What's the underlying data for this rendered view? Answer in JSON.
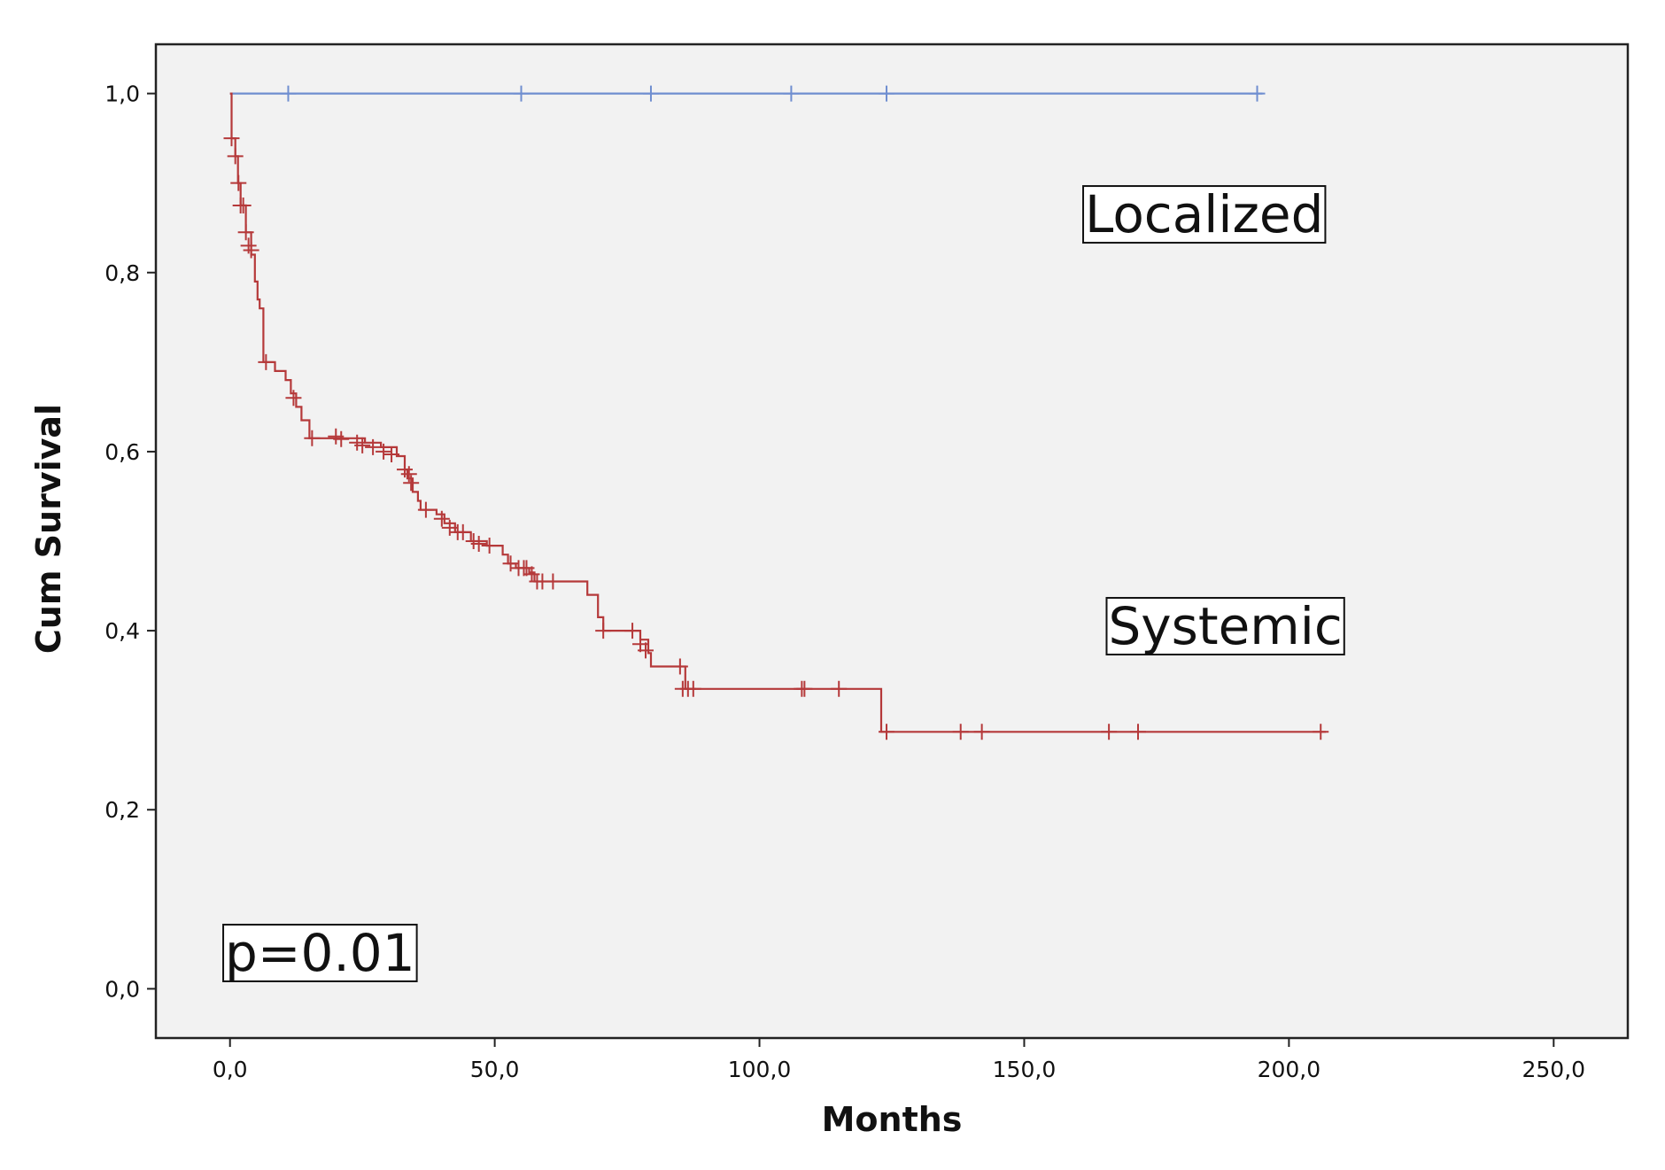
{
  "chart_data": {
    "type": "line",
    "subtype": "kaplan-meier",
    "title": "",
    "xlabel": "Months",
    "ylabel": "Cum Survival",
    "xlim": [
      -14,
      264
    ],
    "ylim": [
      -0.055,
      1.055
    ],
    "x_ticks": [
      {
        "value": 0,
        "label": "0,0"
      },
      {
        "value": 50,
        "label": "50,0"
      },
      {
        "value": 100,
        "label": "100,0"
      },
      {
        "value": 150,
        "label": "150,0"
      },
      {
        "value": 200,
        "label": "200,0"
      },
      {
        "value": 250,
        "label": "250,0"
      }
    ],
    "y_ticks": [
      {
        "value": 0.0,
        "label": "0,0"
      },
      {
        "value": 0.2,
        "label": "0,2"
      },
      {
        "value": 0.4,
        "label": "0,4"
      },
      {
        "value": 0.6,
        "label": "0,6"
      },
      {
        "value": 0.8,
        "label": "0,8"
      },
      {
        "value": 1.0,
        "label": "1,0"
      }
    ],
    "grid": false,
    "legend": "none",
    "series": [
      {
        "name": "Localized",
        "color": "#6f8ed0",
        "steps": [
          [
            0,
            1.0
          ],
          [
            195,
            1.0
          ]
        ],
        "censored": [
          [
            11,
            1.0
          ],
          [
            55,
            1.0
          ],
          [
            79.5,
            1.0
          ],
          [
            106,
            1.0
          ],
          [
            124,
            1.0
          ],
          [
            194,
            1.0
          ]
        ]
      },
      {
        "name": "Systemic",
        "color": "#b5393a",
        "steps": [
          [
            0,
            1.0
          ],
          [
            0.3,
            0.95
          ],
          [
            1.0,
            0.93
          ],
          [
            1.5,
            0.9
          ],
          [
            2.0,
            0.875
          ],
          [
            3.0,
            0.845
          ],
          [
            4.0,
            0.82
          ],
          [
            4.7,
            0.79
          ],
          [
            5.2,
            0.77
          ],
          [
            5.6,
            0.76
          ],
          [
            6.3,
            0.7
          ],
          [
            8.5,
            0.69
          ],
          [
            10.5,
            0.68
          ],
          [
            11.5,
            0.665
          ],
          [
            12.5,
            0.65
          ],
          [
            13.5,
            0.635
          ],
          [
            15.0,
            0.615
          ],
          [
            25.5,
            0.61
          ],
          [
            28.5,
            0.605
          ],
          [
            31.5,
            0.595
          ],
          [
            33.0,
            0.58
          ],
          [
            33.5,
            0.57
          ],
          [
            34.5,
            0.555
          ],
          [
            35.5,
            0.545
          ],
          [
            36.0,
            0.535
          ],
          [
            39.0,
            0.53
          ],
          [
            40.5,
            0.52
          ],
          [
            42.5,
            0.51
          ],
          [
            45.5,
            0.5
          ],
          [
            48.5,
            0.495
          ],
          [
            51.5,
            0.485
          ],
          [
            52.5,
            0.475
          ],
          [
            54.0,
            0.47
          ],
          [
            56.5,
            0.465
          ],
          [
            57.5,
            0.455
          ],
          [
            67.5,
            0.44
          ],
          [
            69.5,
            0.415
          ],
          [
            70.5,
            0.4
          ],
          [
            77.5,
            0.39
          ],
          [
            79.0,
            0.375
          ],
          [
            79.5,
            0.36
          ],
          [
            86.0,
            0.335
          ],
          [
            123.0,
            0.287
          ],
          [
            207,
            0.287
          ]
        ],
        "censored": [
          [
            0.3,
            0.95
          ],
          [
            1.0,
            0.93
          ],
          [
            1.6,
            0.9
          ],
          [
            2.0,
            0.875
          ],
          [
            2.5,
            0.875
          ],
          [
            3.0,
            0.845
          ],
          [
            3.5,
            0.83
          ],
          [
            4.0,
            0.825
          ],
          [
            6.8,
            0.7
          ],
          [
            12.0,
            0.66
          ],
          [
            15.5,
            0.615
          ],
          [
            20.0,
            0.617
          ],
          [
            21.0,
            0.614
          ],
          [
            24.0,
            0.61
          ],
          [
            25.0,
            0.607
          ],
          [
            27.0,
            0.605
          ],
          [
            29.0,
            0.6
          ],
          [
            30.5,
            0.597
          ],
          [
            33.0,
            0.58
          ],
          [
            33.8,
            0.575
          ],
          [
            34.2,
            0.565
          ],
          [
            37.0,
            0.535
          ],
          [
            40.0,
            0.525
          ],
          [
            41.5,
            0.515
          ],
          [
            43.0,
            0.51
          ],
          [
            44.0,
            0.51
          ],
          [
            46.0,
            0.5
          ],
          [
            47.0,
            0.497
          ],
          [
            49.0,
            0.495
          ],
          [
            53.0,
            0.475
          ],
          [
            54.5,
            0.47
          ],
          [
            55.5,
            0.47
          ],
          [
            56.0,
            0.47
          ],
          [
            57.0,
            0.463
          ],
          [
            58.0,
            0.455
          ],
          [
            59.0,
            0.455
          ],
          [
            61.0,
            0.455
          ],
          [
            70.5,
            0.4
          ],
          [
            76.0,
            0.4
          ],
          [
            77.5,
            0.385
          ],
          [
            78.5,
            0.378
          ],
          [
            85.0,
            0.36
          ],
          [
            85.5,
            0.335
          ],
          [
            86.5,
            0.335
          ],
          [
            87.5,
            0.335
          ],
          [
            108.0,
            0.335
          ],
          [
            108.5,
            0.335
          ],
          [
            115.0,
            0.335
          ],
          [
            124.0,
            0.287
          ],
          [
            138.0,
            0.287
          ],
          [
            142.0,
            0.287
          ],
          [
            166.0,
            0.287
          ],
          [
            171.5,
            0.287
          ],
          [
            206.0,
            0.287
          ]
        ]
      }
    ],
    "annotations": [
      {
        "id": "localized",
        "text": "Localized",
        "x": 184,
        "y": 0.865
      },
      {
        "id": "systemic",
        "text": "Systemic",
        "x": 188,
        "y": 0.405
      },
      {
        "id": "pvalue",
        "text": "p=0.01",
        "x": 17,
        "y": 0.04
      }
    ]
  }
}
